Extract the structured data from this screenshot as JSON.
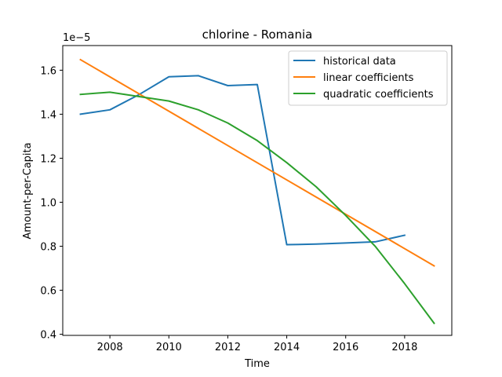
{
  "chart_data": {
    "type": "line",
    "title": "chlorine - Romania",
    "xlabel": "Time",
    "ylabel": "Amount-per-Capita",
    "y_offset_label": "1e−5",
    "xlim": [
      2006.4,
      2019.6
    ],
    "ylim": [
      3.95e-06,
      1.712e-05
    ],
    "x_ticks": [
      2008,
      2010,
      2012,
      2014,
      2016,
      2018
    ],
    "y_ticks": [
      4e-06,
      6e-06,
      8e-06,
      1e-05,
      1.2e-05,
      1.4e-05,
      1.6e-05
    ],
    "y_tick_labels": [
      "0.4",
      "0.6",
      "0.8",
      "1.0",
      "1.2",
      "1.4",
      "1.6"
    ],
    "grid": false,
    "legend_position": "top-right",
    "series": [
      {
        "name": "historical data",
        "color": "#1f77b4",
        "x": [
          2007,
          2008,
          2009,
          2010,
          2011,
          2012,
          2013,
          2014,
          2015,
          2016,
          2017,
          2018
        ],
        "y": [
          1.4e-05,
          1.42e-05,
          1.49e-05,
          1.57e-05,
          1.575e-05,
          1.53e-05,
          1.535e-05,
          8.07e-06,
          8.1e-06,
          8.15e-06,
          8.2e-06,
          8.5e-06
        ]
      },
      {
        "name": "linear coefficients",
        "color": "#ff7f0e",
        "x": [
          2007,
          2019
        ],
        "y": [
          1.648e-05,
          7.11e-06
        ]
      },
      {
        "name": "quadratic coefficients",
        "color": "#2ca02c",
        "x": [
          2007,
          2008,
          2009,
          2010,
          2011,
          2012,
          2013,
          2014,
          2015,
          2016,
          2017,
          2018,
          2019
        ],
        "y": [
          1.49e-05,
          1.5e-05,
          1.48e-05,
          1.46e-05,
          1.42e-05,
          1.36e-05,
          1.28e-05,
          1.18e-05,
          1.07e-05,
          9.4e-06,
          8e-06,
          6.3e-06,
          4.5e-06
        ]
      }
    ]
  }
}
